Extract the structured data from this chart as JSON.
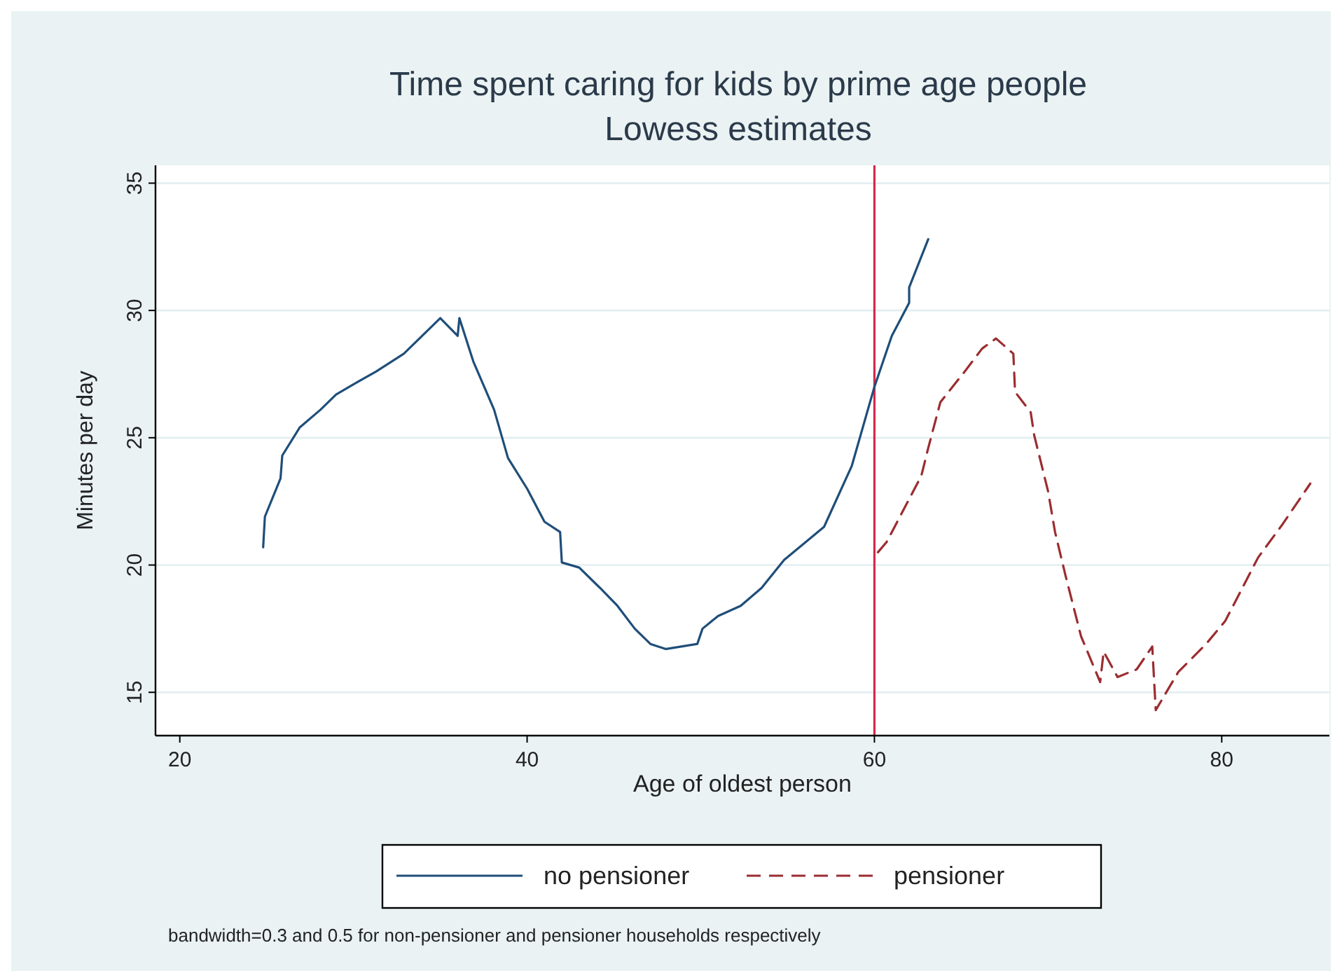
{
  "chart_data": {
    "type": "line",
    "title": "Time spent caring for kids by prime age people",
    "subtitle": "Lowess estimates",
    "xlabel": "Age of oldest person",
    "ylabel": "Minutes per day",
    "xlim": [
      18.6,
      86.2
    ],
    "xticks": [
      20,
      40,
      60,
      80
    ],
    "ylim": [
      13.3,
      35.7
    ],
    "yticks": [
      15,
      20,
      25,
      30,
      35
    ],
    "grid": "y",
    "legend": "bottom",
    "series": [
      {
        "name": "no pensioner",
        "color": "#1f4e79",
        "line_style": "solid",
        "x": [
          24.8,
          24.9,
          25.8,
          25.9,
          26.9,
          28.1,
          29.0,
          30.0,
          31.3,
          32.9,
          35.0,
          36.0,
          36.1,
          36.9,
          38.1,
          38.9,
          40.0,
          41.0,
          41.9,
          42.0,
          43.0,
          44.2,
          45.2,
          46.2,
          47.1,
          48.0,
          49.8,
          50.1,
          51.0,
          52.3,
          53.5,
          54.8,
          57.1,
          58.7,
          60.0,
          61.0,
          62.0,
          62.0,
          63.1
        ],
        "values": [
          20.7,
          21.9,
          23.4,
          24.3,
          25.4,
          26.1,
          26.7,
          27.1,
          27.6,
          28.3,
          29.7,
          29.0,
          29.7,
          28.0,
          26.1,
          24.2,
          23.0,
          21.7,
          21.3,
          20.1,
          19.9,
          19.1,
          18.4,
          17.5,
          16.9,
          16.7,
          16.9,
          17.5,
          18.0,
          18.4,
          19.1,
          20.2,
          21.5,
          23.9,
          27.0,
          29.0,
          30.3,
          30.9,
          32.8
        ]
      },
      {
        "name": "pensioner",
        "color": "#9b2d30",
        "line_style": "dashed",
        "x": [
          60.2,
          60.7,
          62.7,
          63.1,
          63.8,
          65.2,
          66.2,
          67.0,
          68.0,
          68.1,
          69.0,
          69.2,
          70.0,
          70.4,
          71.0,
          71.9,
          73.0,
          73.2,
          74.0,
          75.1,
          76.0,
          76.2,
          77.5,
          79.1,
          80.2,
          82.1,
          83.5,
          85.1
        ],
        "values": [
          20.5,
          20.9,
          23.5,
          24.6,
          26.4,
          27.6,
          28.5,
          28.9,
          28.3,
          26.8,
          26.0,
          25.1,
          22.9,
          21.3,
          19.6,
          17.2,
          15.4,
          16.6,
          15.6,
          15.9,
          16.8,
          14.3,
          15.8,
          16.9,
          17.8,
          20.3,
          21.6,
          23.2
        ]
      }
    ],
    "ref_lines": [
      {
        "axis": "x",
        "value": 60,
        "color": "#d6284b"
      }
    ],
    "annotations": [
      "bandwidth=0.3 and 0.5 for non-pensioner and pensioner households respectively"
    ]
  }
}
